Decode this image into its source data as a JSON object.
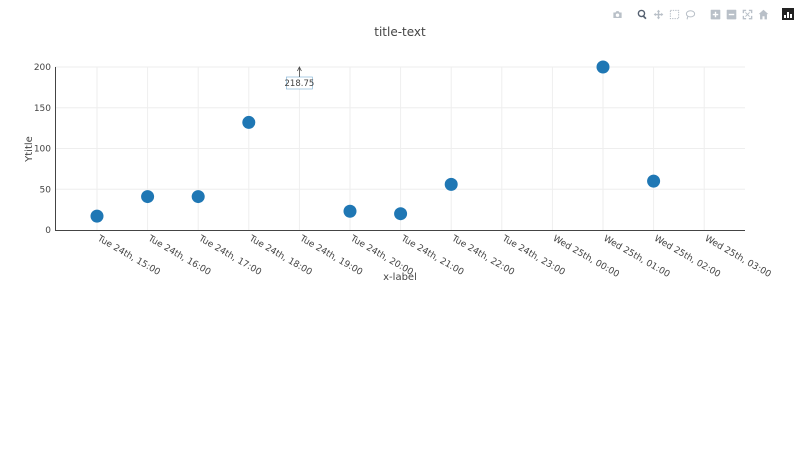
{
  "toolbar": {
    "buttons": [
      {
        "name": "camera-icon",
        "label": "Download plot as a png"
      },
      {
        "name": "zoom-icon",
        "label": "Zoom"
      },
      {
        "name": "pan-icon",
        "label": "Pan"
      },
      {
        "name": "box-select-icon",
        "label": "Box Select"
      },
      {
        "name": "lasso-select-icon",
        "label": "Lasso Select"
      },
      {
        "name": "zoom-in-icon",
        "label": "Zoom in"
      },
      {
        "name": "zoom-out-icon",
        "label": "Zoom out"
      },
      {
        "name": "autoscale-icon",
        "label": "Autoscale"
      },
      {
        "name": "reset-axes-icon",
        "label": "Reset axes"
      },
      {
        "name": "plotly-logo-icon",
        "label": "Produced with Plotly"
      }
    ]
  },
  "chart_data": {
    "type": "scatter",
    "title": "title-text",
    "xlabel": "x-label",
    "ylabel": "Ytitle",
    "x_tick_labels": [
      "Tue 24th, 15:00",
      "Tue 24th, 16:00",
      "Tue 24th, 17:00",
      "Tue 24th, 18:00",
      "Tue 24th, 19:00",
      "Tue 24th, 20:00",
      "Tue 24th, 21:00",
      "Tue 24th, 22:00",
      "Tue 24th, 23:00",
      "Wed 25th, 00:00",
      "Wed 25th, 01:00",
      "Wed 25th, 02:00",
      "Wed 25th, 03:00"
    ],
    "y_ticks": [
      0,
      50,
      100,
      150,
      200
    ],
    "ylim": [
      0,
      200
    ],
    "grid": true,
    "marker_color": "#1f77b4",
    "points": [
      {
        "x": "Tue 24th, 15:00",
        "y": 17
      },
      {
        "x": "Tue 24th, 16:00",
        "y": 41
      },
      {
        "x": "Tue 24th, 17:00",
        "y": 41
      },
      {
        "x": "Tue 24th, 18:00",
        "y": 132
      },
      {
        "x": "Tue 24th, 20:00",
        "y": 23
      },
      {
        "x": "Tue 24th, 21:00",
        "y": 20
      },
      {
        "x": "Tue 24th, 22:00",
        "y": 56
      },
      {
        "x": "Wed 25th, 01:00",
        "y": 200
      },
      {
        "x": "Wed 25th, 02:00",
        "y": 60
      }
    ],
    "annotations": [
      {
        "x": "Tue 24th, 19:00",
        "y": 218.75,
        "text": "218.75"
      }
    ]
  }
}
